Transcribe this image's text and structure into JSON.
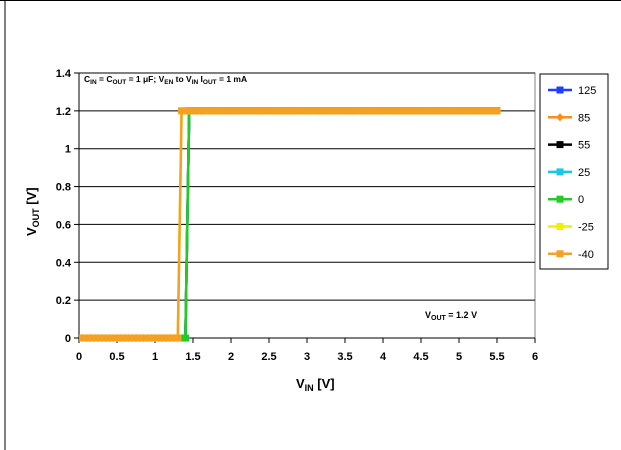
{
  "chart_data": {
    "type": "line",
    "title": "",
    "conditions": {
      "p1": "C",
      "p1_sub": "IN",
      "p2": " = C",
      "p2_sub": "OUT",
      "p3": " = 1 μF; V",
      "p3_sub": "EN",
      "p4": " to V",
      "p4_sub": "IN",
      "p5": "  I",
      "p5_sub": "OUT",
      "p6": " = 1 mA"
    },
    "annotation": {
      "main": "V",
      "sub": "OUT",
      "rest": " = 1.2 V"
    },
    "xlabel": {
      "main": "V",
      "sub": "IN",
      "rest": " [V]"
    },
    "ylabel": {
      "main": "V",
      "sub": "OUT",
      "rest": " [V]"
    },
    "xlim": [
      0,
      6
    ],
    "ylim": [
      0,
      1.4
    ],
    "xticks": [
      "0",
      "0.5",
      "1",
      "1.5",
      "2",
      "2.5",
      "3",
      "3.5",
      "4",
      "4.5",
      "5",
      "5.5",
      "6"
    ],
    "yticks": [
      "0",
      "0.2",
      "0.4",
      "0.6",
      "0.8",
      "1",
      "1.2",
      "1.4"
    ],
    "grid": "horizontal",
    "legend_position": "right",
    "x": [
      0.05,
      0.1,
      0.15,
      0.2,
      0.25,
      0.3,
      0.35,
      0.4,
      0.45,
      0.5,
      0.55,
      0.6,
      0.65,
      0.7,
      0.75,
      0.8,
      0.85,
      0.9,
      0.95,
      1.0,
      1.05,
      1.1,
      1.15,
      1.2,
      1.25,
      1.3,
      1.35,
      1.4,
      1.45,
      1.5,
      1.55,
      1.6,
      1.65,
      1.7,
      1.75,
      1.8,
      1.85,
      1.9,
      1.95,
      2.0,
      2.05,
      2.1,
      2.15,
      2.2,
      2.25,
      2.3,
      2.35,
      2.4,
      2.45,
      2.5,
      2.55,
      2.6,
      2.65,
      2.7,
      2.75,
      2.8,
      2.85,
      2.9,
      2.95,
      3.0,
      3.05,
      3.1,
      3.15,
      3.2,
      3.25,
      3.3,
      3.35,
      3.4,
      3.45,
      3.5,
      3.55,
      3.6,
      3.65,
      3.7,
      3.75,
      3.8,
      3.85,
      3.9,
      3.95,
      4.0,
      4.05,
      4.1,
      4.15,
      4.2,
      4.25,
      4.3,
      4.35,
      4.4,
      4.45,
      4.5,
      4.55,
      4.6,
      4.65,
      4.7,
      4.75,
      4.8,
      4.85,
      4.9,
      4.95,
      5.0,
      5.05,
      5.1,
      5.15,
      5.2,
      5.25,
      5.3,
      5.35,
      5.4,
      5.45,
      5.5
    ],
    "series": [
      {
        "name": "125",
        "color": "#1f3fff",
        "marker": "square",
        "threshold": 1.45
      },
      {
        "name": "85",
        "color": "#ff8c1a",
        "marker": "diamond",
        "threshold": 1.45
      },
      {
        "name": "55",
        "color": "#000000",
        "marker": "square",
        "threshold": 1.45
      },
      {
        "name": "25",
        "color": "#19c8e6",
        "marker": "square",
        "threshold": 1.45
      },
      {
        "name": "0",
        "color": "#22cc22",
        "marker": "square",
        "threshold": 1.45
      },
      {
        "name": "-25",
        "color": "#f0f000",
        "marker": "square",
        "threshold": 1.35
      },
      {
        "name": "-40",
        "color": "#f5a020",
        "marker": "square",
        "threshold": 1.35
      }
    ],
    "v_low": 0,
    "v_high": 1.2
  }
}
